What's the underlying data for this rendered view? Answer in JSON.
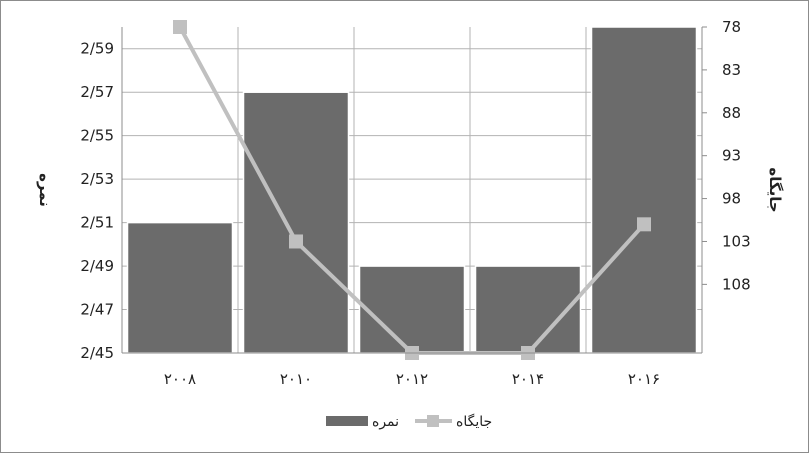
{
  "chart_data": {
    "type": "bar",
    "categories": [
      "۲۰۰۸",
      "۲۰۱۰",
      "۲۰۱۲",
      "۲۰۱۴",
      "۲۰۱۶"
    ],
    "series": [
      {
        "name": "نمره",
        "kind": "bar",
        "axis": "left",
        "values": [
          2.51,
          2.57,
          2.49,
          2.49,
          2.6
        ],
        "color": "#6b6b6b"
      },
      {
        "name": "جایگاه",
        "kind": "line",
        "axis": "right",
        "values": [
          78,
          103,
          116,
          116,
          101
        ],
        "color": "#c0c0c0"
      }
    ],
    "ylabel": "نمره",
    "y2label": "جایگاه",
    "ylim": [
      2.45,
      2.6
    ],
    "yticks": [
      "2/45",
      "2/47",
      "2/49",
      "2/51",
      "2/53",
      "2/55",
      "2/57",
      "2/59"
    ],
    "y2lim": [
      78,
      116
    ],
    "y2ticks": [
      "78",
      "83",
      "88",
      "93",
      "98",
      "103",
      "108"
    ],
    "y2_inverted": true,
    "grid": true,
    "legend": "bottom"
  }
}
